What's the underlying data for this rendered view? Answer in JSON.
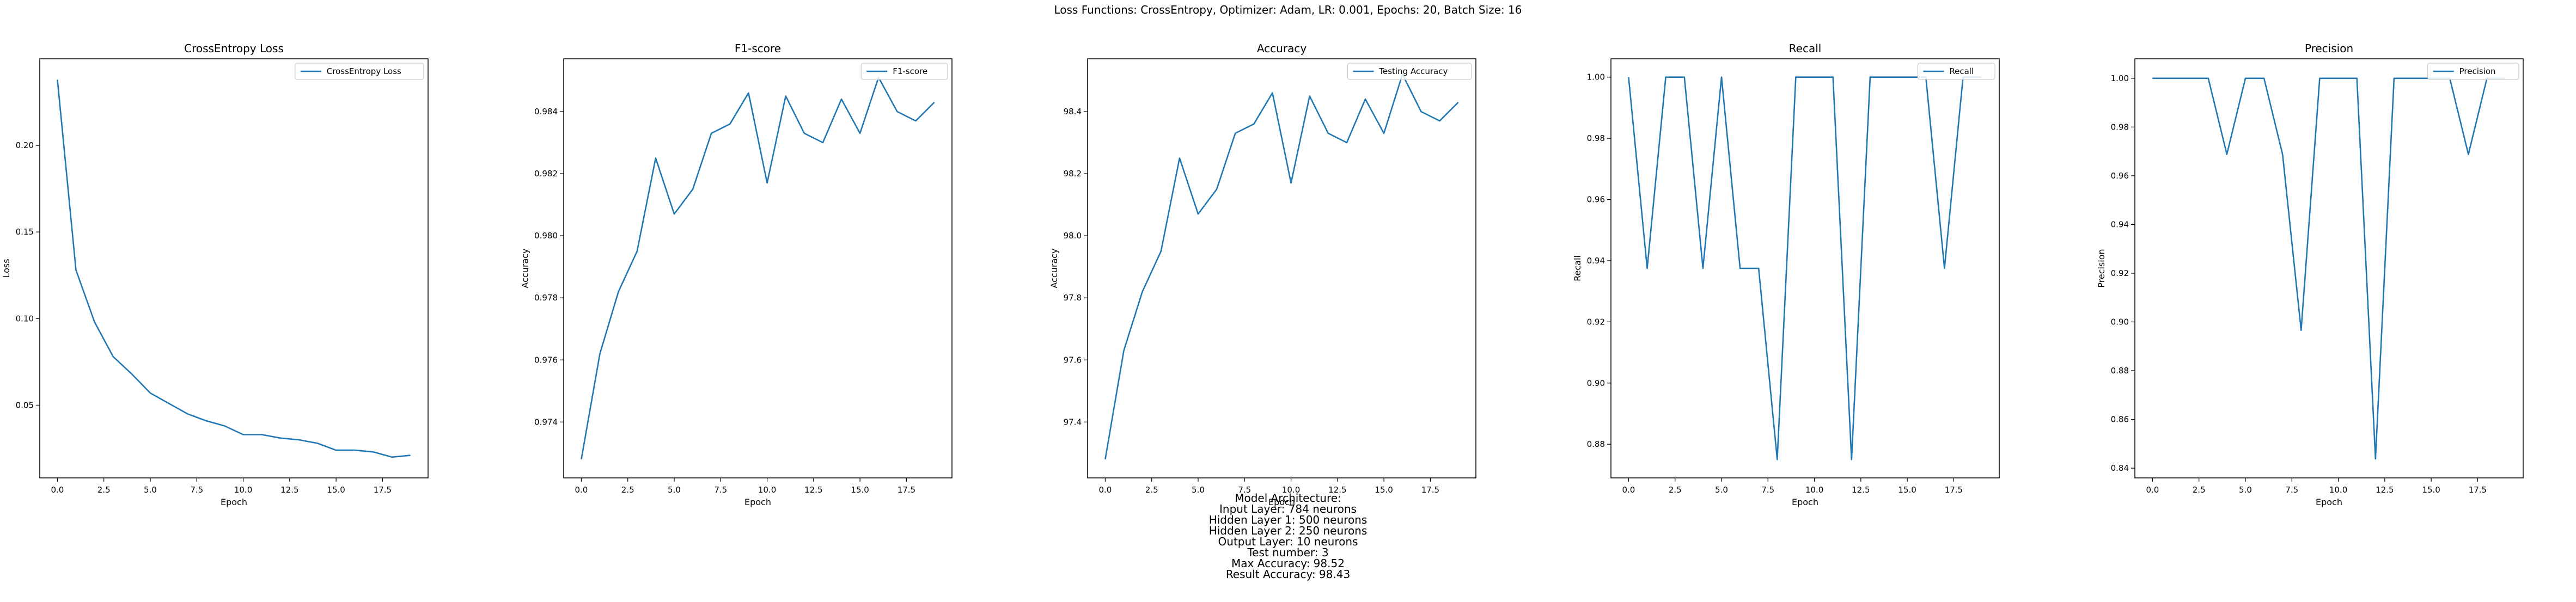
{
  "suptitle": "Loss Functions: CrossEntropy, Optimizer: Adam, LR: 0.001, Epochs: 20, Batch Size: 16",
  "architecture": {
    "lines": [
      "Model Architecture:",
      "Input Layer: 784 neurons",
      "Hidden Layer 1: 500 neurons",
      "Hidden Layer 2: 250 neurons",
      "Output Layer: 10 neurons",
      "Test number: 3",
      "Max Accuracy: 98.52",
      "Result Accuracy: 98.43"
    ]
  },
  "colors": {
    "line": "#1f77b4",
    "axis": "#000000",
    "legend_border": "#cccccc"
  },
  "chart_data": [
    {
      "type": "line",
      "title": "CrossEntropy Loss",
      "xlabel": "Epoch",
      "ylabel": "Loss",
      "legend": "top-right",
      "grid": false,
      "xlim": [
        -0.95,
        19.95
      ],
      "ylim": [
        0.008,
        0.25
      ],
      "xticks": [
        0,
        2.5,
        5,
        7.5,
        10,
        12.5,
        15,
        17.5
      ],
      "xtick_labels": [
        "0.0",
        "2.5",
        "5.0",
        "7.5",
        "10.0",
        "12.5",
        "15.0",
        "17.5"
      ],
      "yticks": [
        0.05,
        0.1,
        0.15,
        0.2
      ],
      "ytick_labels": [
        "0.05",
        "0.10",
        "0.15",
        "0.20"
      ],
      "series": [
        {
          "name": "CrossEntropy Loss",
          "x": [
            0,
            1,
            2,
            3,
            4,
            5,
            6,
            7,
            8,
            9,
            10,
            11,
            12,
            13,
            14,
            15,
            16,
            17,
            18,
            19
          ],
          "y": [
            0.238,
            0.128,
            0.098,
            0.078,
            0.068,
            0.057,
            0.051,
            0.045,
            0.041,
            0.038,
            0.033,
            0.033,
            0.031,
            0.03,
            0.028,
            0.024,
            0.024,
            0.023,
            0.02,
            0.021
          ]
        }
      ]
    },
    {
      "type": "line",
      "title": "F1-score",
      "xlabel": "Epoch",
      "ylabel": "Accuracy",
      "legend": "top-right",
      "grid": false,
      "xlim": [
        -0.95,
        19.95
      ],
      "ylim": [
        0.9722,
        0.9857
      ],
      "xticks": [
        0,
        2.5,
        5,
        7.5,
        10,
        12.5,
        15,
        17.5
      ],
      "xtick_labels": [
        "0.0",
        "2.5",
        "5.0",
        "7.5",
        "10.0",
        "12.5",
        "15.0",
        "17.5"
      ],
      "yticks": [
        0.974,
        0.976,
        0.978,
        0.98,
        0.982,
        0.984
      ],
      "ytick_labels": [
        "0.974",
        "0.976",
        "0.978",
        "0.980",
        "0.982",
        "0.984"
      ],
      "series": [
        {
          "name": "F1-score",
          "x": [
            0,
            1,
            2,
            3,
            4,
            5,
            6,
            7,
            8,
            9,
            10,
            11,
            12,
            13,
            14,
            15,
            16,
            17,
            18,
            19
          ],
          "y": [
            0.9728,
            0.9762,
            0.9782,
            0.9795,
            0.9825,
            0.9807,
            0.9815,
            0.9833,
            0.9836,
            0.9846,
            0.9817,
            0.9845,
            0.9833,
            0.983,
            0.9844,
            0.9833,
            0.9851,
            0.984,
            0.9837,
            0.9843
          ]
        }
      ]
    },
    {
      "type": "line",
      "title": "Accuracy",
      "xlabel": "Epoch",
      "ylabel": "Accuracy",
      "legend": "top-right",
      "grid": false,
      "xlim": [
        -0.95,
        19.95
      ],
      "ylim": [
        97.22,
        98.57
      ],
      "xticks": [
        0,
        2.5,
        5,
        7.5,
        10,
        12.5,
        15,
        17.5
      ],
      "xtick_labels": [
        "0.0",
        "2.5",
        "5.0",
        "7.5",
        "10.0",
        "12.5",
        "15.0",
        "17.5"
      ],
      "yticks": [
        97.4,
        97.6,
        97.8,
        98.0,
        98.2,
        98.4
      ],
      "ytick_labels": [
        "97.4",
        "97.6",
        "97.8",
        "98.0",
        "98.2",
        "98.4"
      ],
      "series": [
        {
          "name": "Testing Accuracy",
          "x": [
            0,
            1,
            2,
            3,
            4,
            5,
            6,
            7,
            8,
            9,
            10,
            11,
            12,
            13,
            14,
            15,
            16,
            17,
            18,
            19
          ],
          "y": [
            97.28,
            97.63,
            97.82,
            97.95,
            98.25,
            98.07,
            98.15,
            98.33,
            98.36,
            98.46,
            98.17,
            98.45,
            98.33,
            98.3,
            98.44,
            98.33,
            98.52,
            98.4,
            98.37,
            98.43
          ]
        }
      ]
    },
    {
      "type": "line",
      "title": "Recall",
      "xlabel": "Epoch",
      "ylabel": "Recall",
      "legend": "top-right",
      "grid": false,
      "xlim": [
        -0.95,
        19.95
      ],
      "ylim": [
        0.869,
        1.006
      ],
      "xticks": [
        0,
        2.5,
        5,
        7.5,
        10,
        12.5,
        15,
        17.5
      ],
      "xtick_labels": [
        "0.0",
        "2.5",
        "5.0",
        "7.5",
        "10.0",
        "12.5",
        "15.0",
        "17.5"
      ],
      "yticks": [
        0.88,
        0.9,
        0.92,
        0.94,
        0.96,
        0.98,
        1.0
      ],
      "ytick_labels": [
        "0.88",
        "0.90",
        "0.92",
        "0.94",
        "0.96",
        "0.98",
        "1.00"
      ],
      "series": [
        {
          "name": "Recall",
          "x": [
            0,
            1,
            2,
            3,
            4,
            5,
            6,
            7,
            8,
            9,
            10,
            11,
            12,
            13,
            14,
            15,
            16,
            17,
            18,
            19
          ],
          "y": [
            1.0,
            0.9375,
            1.0,
            1.0,
            0.9375,
            1.0,
            0.9375,
            0.9375,
            0.875,
            1.0,
            1.0,
            1.0,
            0.875,
            1.0,
            1.0,
            1.0,
            1.0,
            0.9375,
            1.0,
            1.0
          ]
        }
      ]
    },
    {
      "type": "line",
      "title": "Precision",
      "xlabel": "Epoch",
      "ylabel": "Precision",
      "legend": "top-right",
      "grid": false,
      "xlim": [
        -0.95,
        19.95
      ],
      "ylim": [
        0.836,
        1.008
      ],
      "xticks": [
        0,
        2.5,
        5,
        7.5,
        10,
        12.5,
        15,
        17.5
      ],
      "xtick_labels": [
        "0.0",
        "2.5",
        "5.0",
        "7.5",
        "10.0",
        "12.5",
        "15.0",
        "17.5"
      ],
      "yticks": [
        0.84,
        0.86,
        0.88,
        0.9,
        0.92,
        0.94,
        0.96,
        0.98,
        1.0
      ],
      "ytick_labels": [
        "0.84",
        "0.86",
        "0.88",
        "0.90",
        "0.92",
        "0.94",
        "0.96",
        "0.98",
        "1.00"
      ],
      "series": [
        {
          "name": "Precision",
          "x": [
            0,
            1,
            2,
            3,
            4,
            5,
            6,
            7,
            8,
            9,
            10,
            11,
            12,
            13,
            14,
            15,
            16,
            17,
            18,
            19
          ],
          "y": [
            1.0,
            1.0,
            1.0,
            1.0,
            0.9688,
            1.0,
            1.0,
            0.9688,
            0.8966,
            1.0,
            1.0,
            1.0,
            0.8438,
            1.0,
            1.0,
            1.0,
            1.0,
            0.9688,
            1.0,
            1.0
          ]
        }
      ]
    }
  ]
}
